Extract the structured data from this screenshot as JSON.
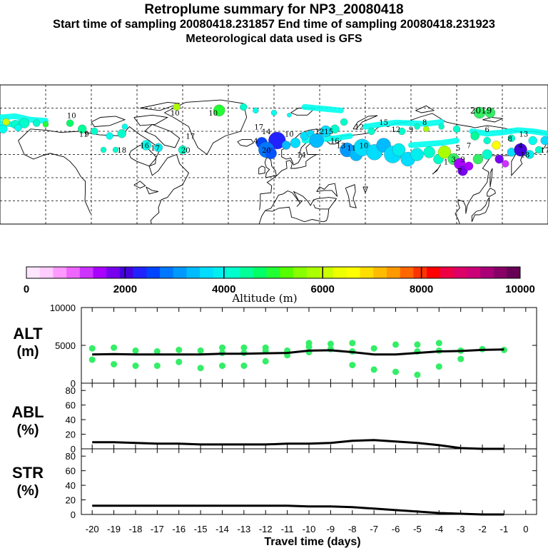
{
  "header": {
    "title": "Retroplume summary for NP3_20080418",
    "subtitle": "Start time of sampling 20080418.231857     End time of sampling 20080418.231923",
    "met_line": "Meteorological data used is GFS"
  },
  "colors": {
    "point": "#33ee66",
    "line": "#000000",
    "colorbar": [
      "#ffe6ff",
      "#ffccff",
      "#ff99ff",
      "#ee66ff",
      "#cc33ff",
      "#aa00ff",
      "#7700ee",
      "#4400dd",
      "#2222ff",
      "#0044ff",
      "#0077ff",
      "#0099ff",
      "#00bbff",
      "#00ddff",
      "#00eeee",
      "#00ffcc",
      "#00ff99",
      "#00ff66",
      "#22ff33",
      "#55ff00",
      "#88ff00",
      "#aaff00",
      "#ccff00",
      "#eeff00",
      "#ffff00",
      "#ffdd00",
      "#ffbb00",
      "#ff9900",
      "#ff6600",
      "#ff3300",
      "#ff0000",
      "#ee0044",
      "#dd0066",
      "#cc0077",
      "#aa0077",
      "#880066",
      "#660055"
    ]
  },
  "map": {
    "numbers": [
      {
        "label": "10",
        "lon": -133,
        "lat": 77,
        "c": "#aaff00"
      },
      {
        "label": "10",
        "lon": -65,
        "lat": 78,
        "c": "#33ee66"
      },
      {
        "label": "10",
        "lon": -40,
        "lat": 78,
        "c": "#00ffcc"
      },
      {
        "label": "11",
        "lon": -125,
        "lat": 69,
        "c": "#00ff66"
      },
      {
        "label": "9",
        "lon": -123,
        "lat": 69,
        "c": "#00ff66"
      },
      {
        "label": "16",
        "lon": -85,
        "lat": 64,
        "c": "#00ddff"
      },
      {
        "label": "17",
        "lon": -78,
        "lat": 63,
        "c": "#00ffcc"
      },
      {
        "label": "20",
        "lon": -58,
        "lat": 62,
        "c": "#00ffcc"
      },
      {
        "label": "18",
        "lon": -100,
        "lat": 62,
        "c": "#00ddff"
      },
      {
        "label": "17",
        "lon": -55,
        "lat": 68,
        "c": "#00ddff"
      },
      {
        "label": "14",
        "lon": -5,
        "lat": 70,
        "c": "#00ddff"
      },
      {
        "label": "17",
        "lon": -10,
        "lat": 72,
        "c": "#00ddff"
      },
      {
        "label": "4",
        "lon": -12,
        "lat": 66,
        "c": "#2222ff"
      },
      {
        "label": "20",
        "lon": -5,
        "lat": 62,
        "c": "#0077ff"
      },
      {
        "label": "10",
        "lon": 10,
        "lat": 69,
        "c": "#00ddff"
      },
      {
        "label": "14",
        "lon": 18,
        "lat": 60,
        "c": "#00bbff"
      },
      {
        "label": "12",
        "lon": 30,
        "lat": 70,
        "c": "#00ddff"
      },
      {
        "label": "15",
        "lon": 36,
        "lat": 70,
        "c": "#00ddff"
      },
      {
        "label": "16",
        "lon": 40,
        "lat": 66,
        "c": "#00ddff"
      },
      {
        "label": "13",
        "lon": 44,
        "lat": 64,
        "c": "#0099ff"
      },
      {
        "label": "11",
        "lon": 51,
        "lat": 63,
        "c": "#00ddff"
      },
      {
        "label": "10",
        "lon": 59,
        "lat": 64,
        "c": "#33ee66"
      },
      {
        "label": "12",
        "lon": 56,
        "lat": 72,
        "c": "#00ddff"
      },
      {
        "label": "15",
        "lon": 72,
        "lat": 74,
        "c": "#00ddff"
      },
      {
        "label": "12",
        "lon": 80,
        "lat": 71,
        "c": "#00ffcc"
      },
      {
        "label": "9",
        "lon": 90,
        "lat": 71,
        "c": "#aaff00"
      },
      {
        "label": "8",
        "lon": 99,
        "lat": 74,
        "c": "#00ffcc"
      },
      {
        "label": "2019",
        "lon": 136,
        "lat": 79,
        "c": "#00ff66"
      },
      {
        "label": "6",
        "lon": 140,
        "lat": 71,
        "c": "#00ffcc"
      },
      {
        "label": "8",
        "lon": 155,
        "lat": 67,
        "c": "#00ddff"
      },
      {
        "label": "4",
        "lon": 162,
        "lat": 64,
        "c": "#7700ee"
      },
      {
        "label": "7",
        "lon": 128,
        "lat": 64,
        "c": "#00ff99"
      },
      {
        "label": "5",
        "lon": 121,
        "lat": 63,
        "c": "#0044ff"
      },
      {
        "label": "9",
        "lon": 124,
        "lat": 58,
        "c": "#00ffcc"
      },
      {
        "label": "3",
        "lon": 118,
        "lat": 58,
        "c": "#aa00ff"
      },
      {
        "label": "1",
        "lon": 113,
        "lat": 57,
        "c": "#aa00ff"
      },
      {
        "label": "7",
        "lon": 122,
        "lat": 53,
        "c": "#0077ff"
      },
      {
        "label": "18",
        "lon": 165,
        "lat": 60,
        "c": "#00ddff"
      },
      {
        "label": "17",
        "lon": 178,
        "lat": 62,
        "c": "#00ffcc"
      },
      {
        "label": "13",
        "lon": 164,
        "lat": 69,
        "c": "#00ffcc"
      }
    ]
  },
  "colorbar": {
    "tick_labels": [
      "0",
      "2000",
      "4000",
      "6000",
      "8000",
      "10000"
    ],
    "label": "Altitude (m)"
  },
  "panels": {
    "alt": {
      "label": "ALT",
      "units": "(m)",
      "ticks": [
        "10000",
        "5000",
        "0"
      ]
    },
    "abl": {
      "label": "ABL",
      "units": "(%)",
      "ticks": [
        "80",
        "60",
        "40",
        "20",
        "0"
      ]
    },
    "str": {
      "label": "STR",
      "units": "(%)",
      "ticks": [
        "80",
        "60",
        "40",
        "20",
        "0"
      ]
    }
  },
  "xaxis": {
    "label": "Travel time (days)",
    "ticks": [
      "-20",
      "-19",
      "-18",
      "-17",
      "-16",
      "-15",
      "-14",
      "-13",
      "-12",
      "-11",
      "-10",
      "-9",
      "-8",
      "-7",
      "-6",
      "-5",
      "-4",
      "-3",
      "-2",
      "-1",
      "0"
    ]
  },
  "chart_data": [
    {
      "type": "scatter",
      "title": "ALT (m)",
      "xlabel": "Travel time (days)",
      "ylabel": "ALT (m)",
      "xlim": [
        -20,
        0
      ],
      "ylim": [
        0,
        10000
      ],
      "series": [
        {
          "name": "mean altitude",
          "x": [
            -20,
            -19,
            -18,
            -17,
            -16,
            -15,
            -14,
            -13,
            -12,
            -11,
            -10,
            -9,
            -8,
            -7,
            -6,
            -5,
            -4,
            -3,
            -2,
            -1
          ],
          "values": [
            3800,
            3850,
            3800,
            3800,
            3800,
            3800,
            3900,
            3900,
            3950,
            4000,
            4300,
            4350,
            4100,
            3800,
            3800,
            4000,
            4200,
            4250,
            4400,
            4450
          ]
        },
        {
          "name": "cluster altitudes",
          "x": [
            -20,
            -20,
            -19,
            -19,
            -18,
            -18,
            -17,
            -17,
            -16,
            -16,
            -15,
            -15,
            -14,
            -14,
            -14,
            -13,
            -13,
            -13,
            -12,
            -12,
            -12,
            -11,
            -11,
            -10,
            -10,
            -10,
            -9,
            -9,
            -8,
            -8,
            -8,
            -7,
            -7,
            -6,
            -6,
            -5,
            -5,
            -5,
            -4,
            -4,
            -4,
            -3,
            -3,
            -2,
            -1
          ],
          "values": [
            4600,
            3100,
            4700,
            2500,
            4300,
            2300,
            4200,
            2300,
            4400,
            2800,
            4300,
            2000,
            4700,
            4000,
            2300,
            4700,
            4000,
            2300,
            4700,
            4300,
            2900,
            4300,
            3700,
            5300,
            4100,
            4800,
            4500,
            5200,
            5300,
            4200,
            2400,
            4600,
            1800,
            5100,
            1500,
            5100,
            4200,
            1100,
            5300,
            4300,
            2200,
            4300,
            3200,
            4500,
            4400
          ]
        }
      ]
    },
    {
      "type": "line",
      "title": "ABL (%)",
      "xlabel": "Travel time (days)",
      "ylabel": "ABL (%)",
      "xlim": [
        -20,
        0
      ],
      "ylim": [
        0,
        90
      ],
      "x": [
        -20,
        -19,
        -18,
        -17,
        -16,
        -15,
        -14,
        -13,
        -12,
        -11,
        -10,
        -9,
        -8,
        -7,
        -6,
        -5,
        -4,
        -3,
        -2,
        -1
      ],
      "values": [
        9,
        9,
        8,
        7,
        7,
        6,
        6,
        6,
        6,
        7,
        7,
        8,
        11,
        12,
        10,
        8,
        5,
        1,
        0,
        0
      ]
    },
    {
      "type": "line",
      "title": "STR (%)",
      "xlabel": "Travel time (days)",
      "ylabel": "STR (%)",
      "xlim": [
        -20,
        0
      ],
      "ylim": [
        0,
        90
      ],
      "x": [
        -20,
        -19,
        -18,
        -17,
        -16,
        -15,
        -14,
        -13,
        -12,
        -11,
        -10,
        -9,
        -8,
        -7,
        -6,
        -5,
        -4,
        -3,
        -2,
        -1
      ],
      "values": [
        12,
        12,
        12,
        12,
        12,
        12,
        12,
        12,
        12,
        12,
        11,
        11,
        10,
        8,
        6,
        4,
        2,
        1,
        0,
        0
      ]
    }
  ]
}
